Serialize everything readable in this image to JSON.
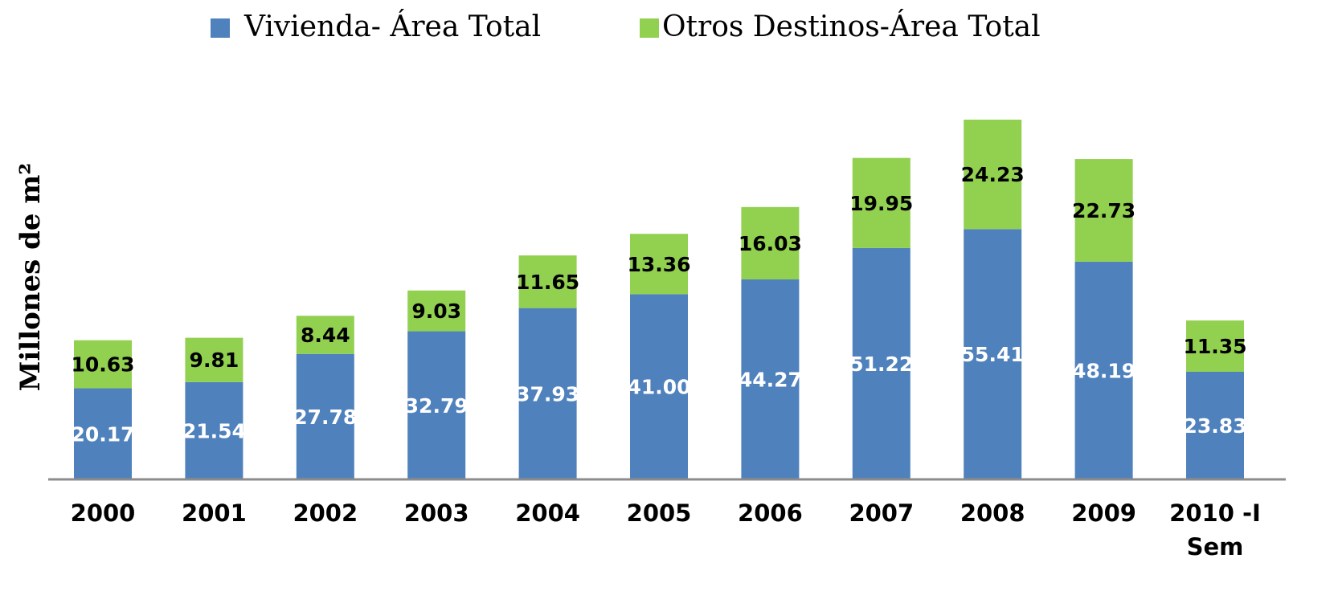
{
  "chart_data": {
    "type": "stacked-bar",
    "y_label": "Millones de m²",
    "categories": [
      "2000",
      "2001",
      "2002",
      "2003",
      "2004",
      "2005",
      "2006",
      "2007",
      "2008",
      "2009",
      "2010 -I Sem"
    ],
    "series": [
      {
        "name": "Vivienda- Área Total",
        "color": "#4f81bd",
        "label_color": "#ffffff",
        "values": [
          20.17,
          21.54,
          27.78,
          32.79,
          37.93,
          41.0,
          44.27,
          51.22,
          55.41,
          48.19,
          23.83
        ],
        "value_labels": [
          "20.17",
          "21.54",
          "27.78",
          "32.79",
          "37.93",
          "41.00",
          "44.27",
          "51.22",
          "55.41",
          "48.19",
          "23.83"
        ]
      },
      {
        "name": "Otros Destinos-Área Total",
        "color": "#92d050",
        "label_color": "#000000",
        "values": [
          10.63,
          9.81,
          8.44,
          9.03,
          11.65,
          13.36,
          16.03,
          19.95,
          24.23,
          22.73,
          11.35
        ],
        "value_labels": [
          "10.63",
          "9.81",
          "8.44",
          "9.03",
          "11.65",
          "13.36",
          "16.03",
          "19.95",
          "24.23",
          "22.73",
          "11.35"
        ]
      }
    ],
    "ylim": [
      0,
      80
    ]
  }
}
